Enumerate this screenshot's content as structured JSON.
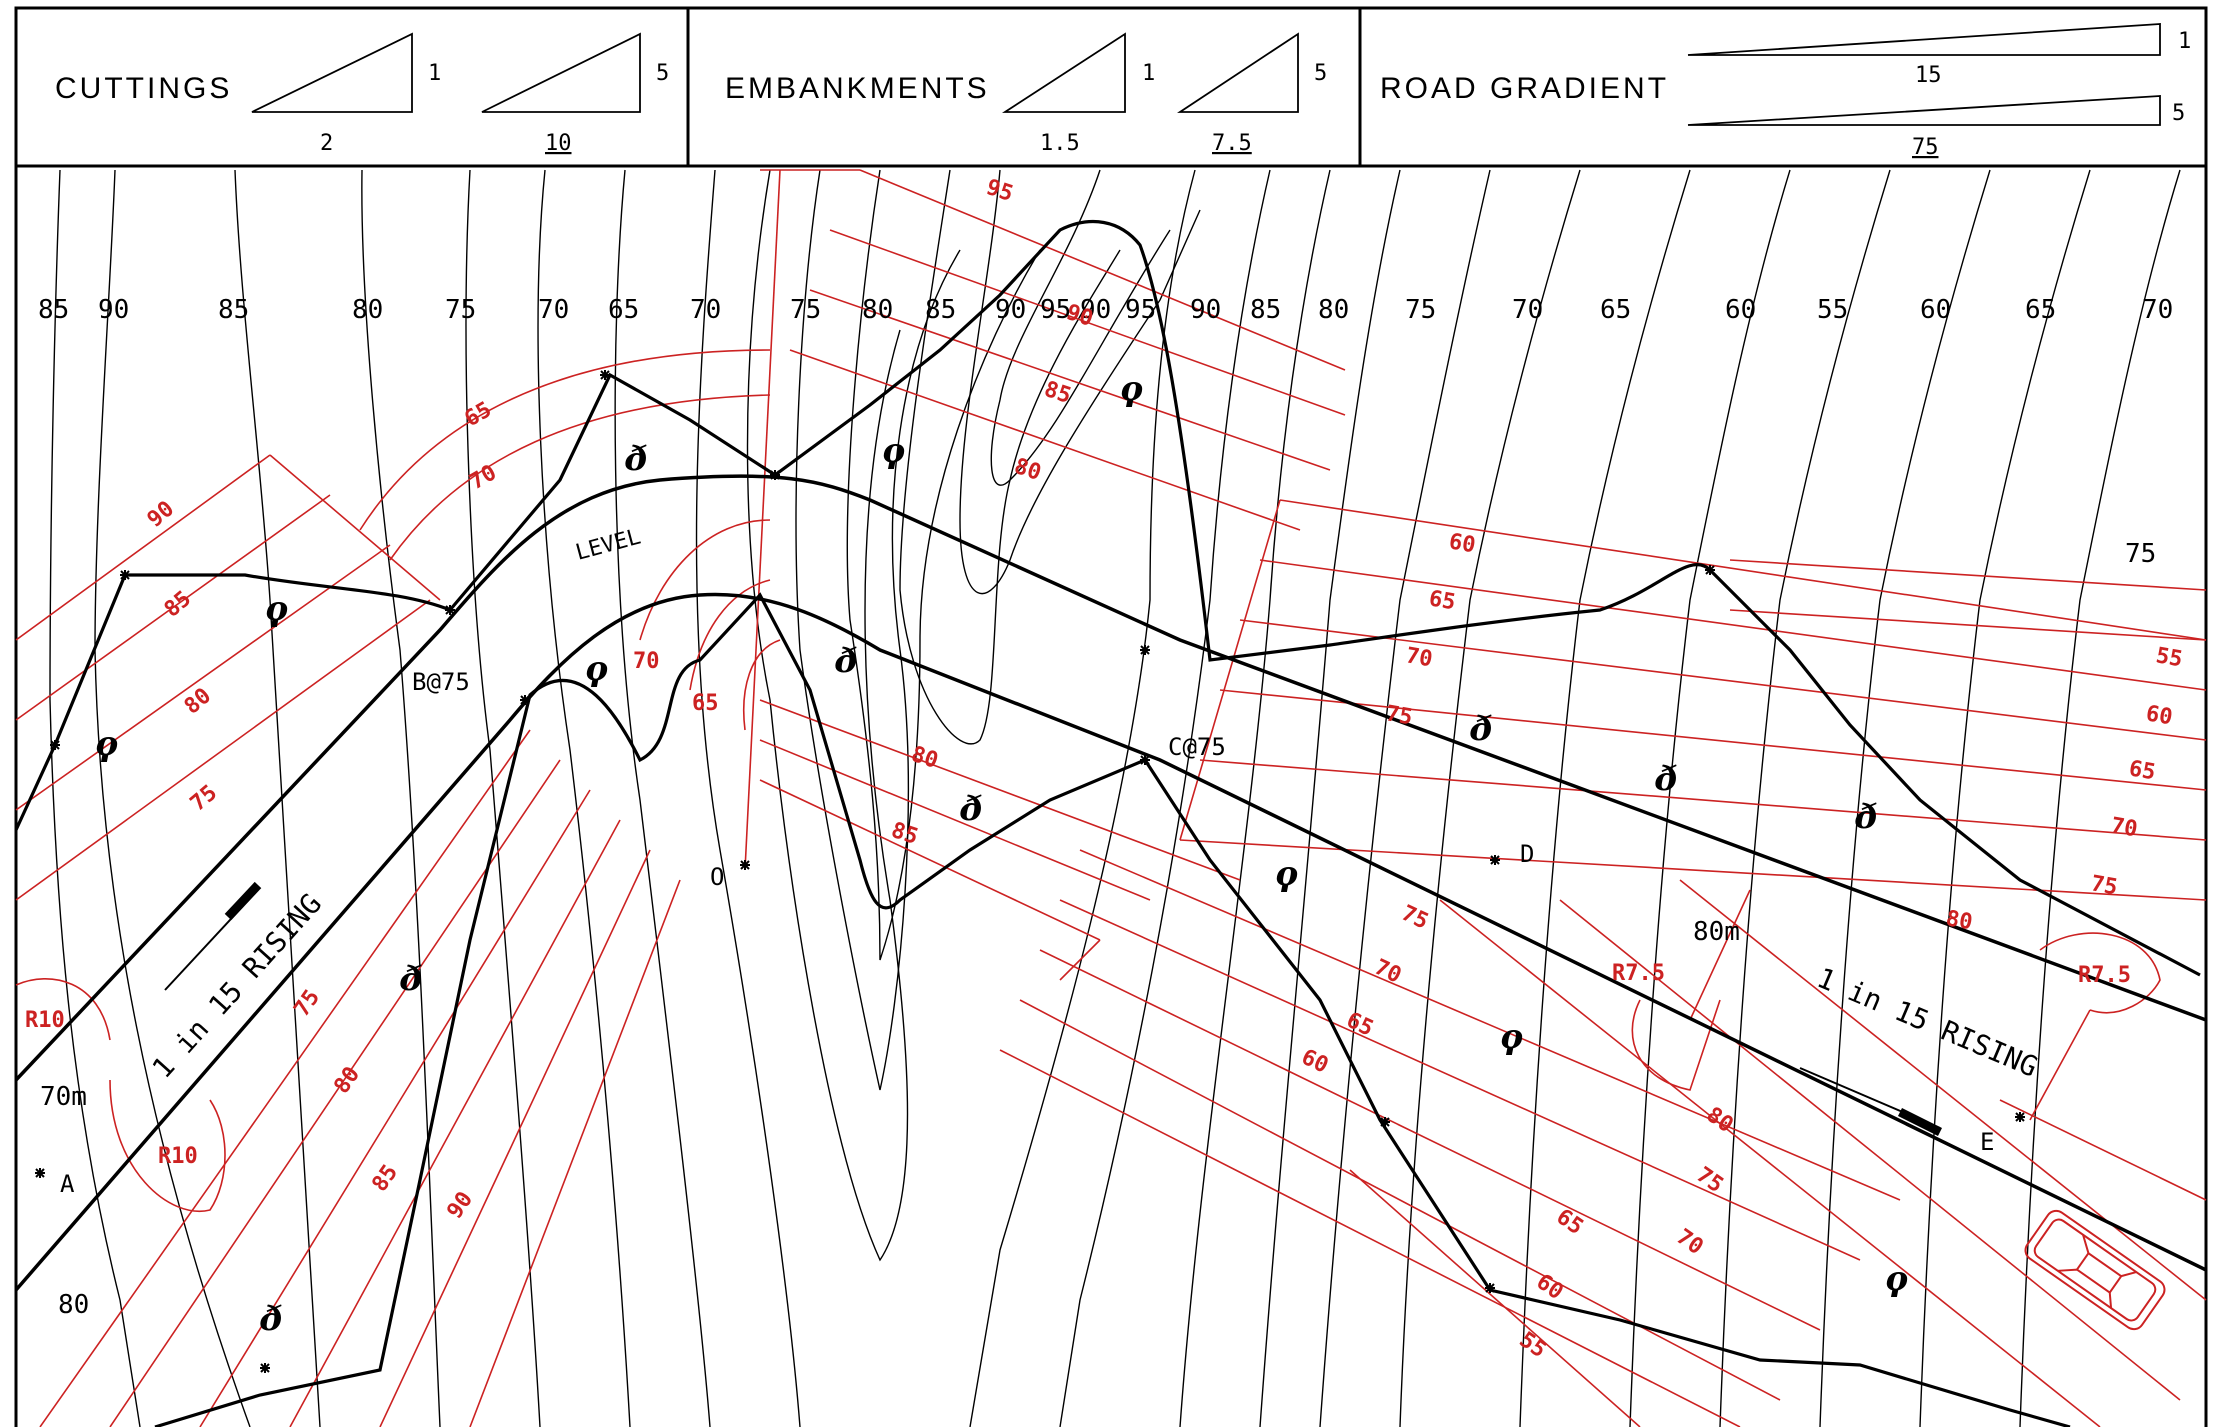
{
  "legend": {
    "cuttings": {
      "title": "CUTTINGS",
      "ratio_a": {
        "rise": "1",
        "run": "2"
      },
      "ratio_b": {
        "rise": "5",
        "run": "10"
      }
    },
    "embankments": {
      "title": "EMBANKMENTS",
      "ratio_a": {
        "rise": "1",
        "run": "1.5"
      },
      "ratio_b": {
        "rise": "5",
        "run": "7.5"
      }
    },
    "road_gradient": {
      "title": "ROAD GRADIENT",
      "ratio_a": {
        "rise": "1",
        "run": "15"
      },
      "ratio_b": {
        "rise": "5",
        "run": "75"
      }
    }
  },
  "contour_labels_top": [
    "85",
    "90",
    "85",
    "80",
    "75",
    "70",
    "65",
    "70",
    "75",
    "80",
    "85",
    "90",
    "95",
    "90",
    "95",
    "90",
    "85",
    "80",
    "75",
    "70",
    "65",
    "60",
    "55",
    "60",
    "65",
    "70"
  ],
  "contour_label_right": "75",
  "contour_label_lower_left_a": "70m",
  "contour_label_lower_left_b": "80",
  "points": {
    "a": "A",
    "b": "B@75",
    "c": "C@75",
    "d": "D",
    "e": "E",
    "o": "O"
  },
  "road_labels": {
    "level": "LEVEL",
    "rising_left": "1 in 15 RISING",
    "rising_right": "1 in 15 RISING",
    "length_right": "80m"
  },
  "radii": {
    "r10_top": "R10",
    "r10_bottom": "R10",
    "r75_mid": "R7.5",
    "r75_right": "R7.5"
  },
  "formation_labels": {
    "left_upper": [
      "90",
      "85",
      "80",
      "75"
    ],
    "left_lower": [
      "75",
      "80",
      "85",
      "90"
    ],
    "hill_upper": [
      "65",
      "70"
    ],
    "hill_inner": [
      "70",
      "65"
    ],
    "centre": [
      "95",
      "90",
      "85",
      "80"
    ],
    "centre_lower": [
      "80",
      "85"
    ],
    "right_upper": [
      "60",
      "65",
      "70",
      "75"
    ],
    "far_right": [
      "55",
      "60",
      "65",
      "70",
      "75",
      "80"
    ],
    "right_lower": [
      "75",
      "70",
      "65",
      "60"
    ],
    "bottom_right": [
      "80",
      "75",
      "70",
      "65",
      "60",
      "55"
    ]
  },
  "colors": {
    "contour": "#000000",
    "formation": "#cc2222",
    "background": "#ffffff"
  },
  "icons": {
    "cut": "cut-symbol-icon",
    "fill": "fill-symbol-icon",
    "car": "car-icon",
    "arrow": "direction-arrow-icon"
  }
}
